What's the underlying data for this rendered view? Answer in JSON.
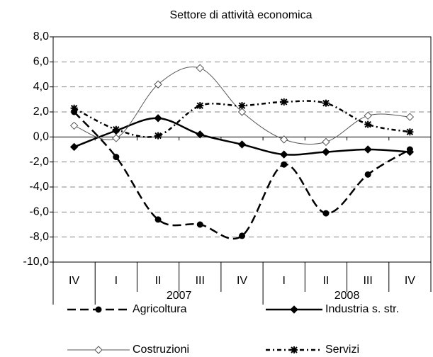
{
  "chart_data": {
    "type": "line",
    "title": "Settore di attività economica",
    "categories": [
      "IV",
      "I",
      "II",
      "III",
      "IV",
      "I",
      "II",
      "III",
      "IV"
    ],
    "years": [
      "2007",
      "2008"
    ],
    "ylim": [
      -10,
      8
    ],
    "yticks": [
      {
        "value": -10,
        "label": "-10,0"
      },
      {
        "value": -8,
        "label": "-8,0"
      },
      {
        "value": -6,
        "label": "-6,0"
      },
      {
        "value": -4,
        "label": "-4,0"
      },
      {
        "value": -2,
        "label": "-2,0"
      },
      {
        "value": 0,
        "label": "0,0"
      },
      {
        "value": 2,
        "label": "2,0"
      },
      {
        "value": 4,
        "label": "4,0"
      },
      {
        "value": 6,
        "label": "6,0"
      },
      {
        "value": 8,
        "label": "8,0"
      }
    ],
    "grid": true,
    "series": [
      {
        "name": "Agricoltura",
        "color": "#000000",
        "marker": "circle",
        "dash": "12,6",
        "width": 2.5,
        "values": [
          2.0,
          -1.6,
          -6.6,
          -7.0,
          -7.9,
          -2.2,
          -6.1,
          -3.0,
          -1.0
        ]
      },
      {
        "name": "Industria s. str.",
        "color": "#000000",
        "marker": "diamond",
        "dash": "none",
        "width": 2.5,
        "values": [
          -0.8,
          0.5,
          1.5,
          0.2,
          -0.6,
          -1.4,
          -1.2,
          -1.0,
          -1.2
        ]
      },
      {
        "name": "Costruzioni",
        "color": "#555555",
        "marker": "open-diamond",
        "dash": "none",
        "width": 1,
        "values": [
          0.9,
          -0.1,
          4.2,
          5.5,
          2.0,
          -0.2,
          -0.4,
          1.7,
          1.6
        ]
      },
      {
        "name": "Servizi",
        "color": "#000000",
        "marker": "asterisk",
        "dash": "6,4,2,4",
        "width": 2.5,
        "values": [
          2.3,
          0.6,
          0.1,
          2.5,
          2.5,
          2.8,
          2.7,
          1.0,
          0.4
        ]
      }
    ]
  }
}
